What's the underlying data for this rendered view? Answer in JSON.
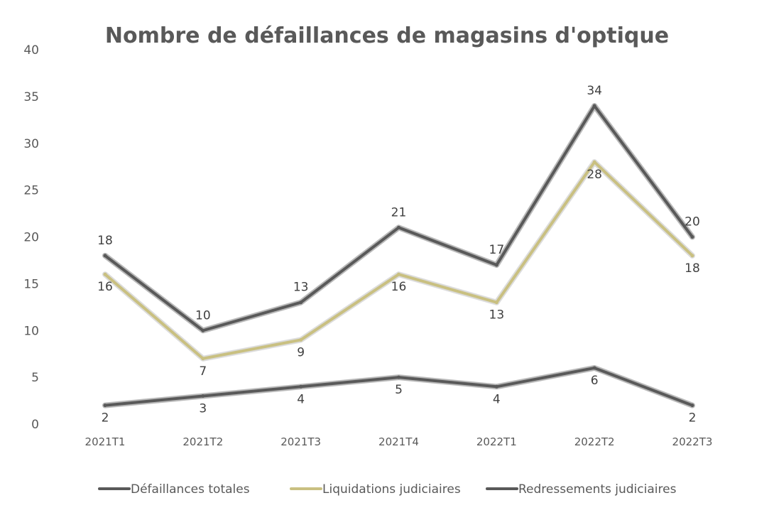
{
  "chart_data": {
    "type": "line",
    "title": "Nombre de défaillances de magasins d'optique",
    "xlabel": "",
    "ylabel": "",
    "categories": [
      "2021T1",
      "2021T2",
      "2021T3",
      "2021T4",
      "2022T1",
      "2022T2",
      "2022T3"
    ],
    "ylim": [
      0,
      40
    ],
    "yticks": [
      0,
      5,
      10,
      15,
      20,
      25,
      30,
      35,
      40
    ],
    "grid": false,
    "legend_position": "bottom",
    "series": [
      {
        "name": "Défaillances totales",
        "values": [
          18,
          10,
          13,
          21,
          17,
          34,
          20
        ],
        "color": "#595959",
        "outline": "#7f7f7f",
        "label_position": "above"
      },
      {
        "name": "Liquidations judiciaires",
        "values": [
          16,
          7,
          9,
          16,
          13,
          28,
          18
        ],
        "color": "#c9c081",
        "outline": "#bfbfbf",
        "label_position": "below"
      },
      {
        "name": "Redressements judiciaires",
        "values": [
          2,
          3,
          4,
          5,
          4,
          6,
          2
        ],
        "color": "#595959",
        "outline": "#7f7f7f",
        "label_position": "below"
      }
    ]
  }
}
